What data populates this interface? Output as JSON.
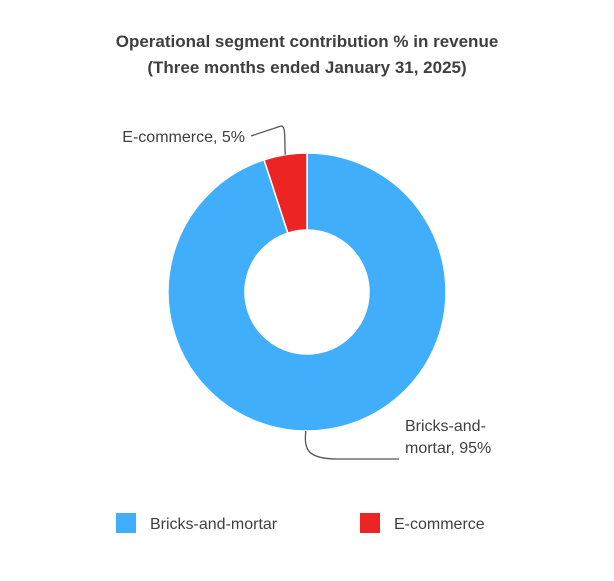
{
  "chart_data": {
    "type": "pie",
    "donut": true,
    "title": "Operational segment contribution % in revenue",
    "subtitle": "(Three months ended January 31, 2025)",
    "unit": "%",
    "slices": [
      {
        "name": "Bricks-and-mortar",
        "value": 95,
        "color": "#41aefc",
        "label_lines": [
          "Bricks-and-",
          "mortar, 95%"
        ]
      },
      {
        "name": "E-commerce",
        "value": 5,
        "color": "#ec2424",
        "label_lines": [
          "E-commerce, 5%"
        ]
      }
    ],
    "legend": {
      "position": "bottom",
      "entries": [
        "Bricks-and-mortar",
        "E-commerce"
      ]
    }
  }
}
